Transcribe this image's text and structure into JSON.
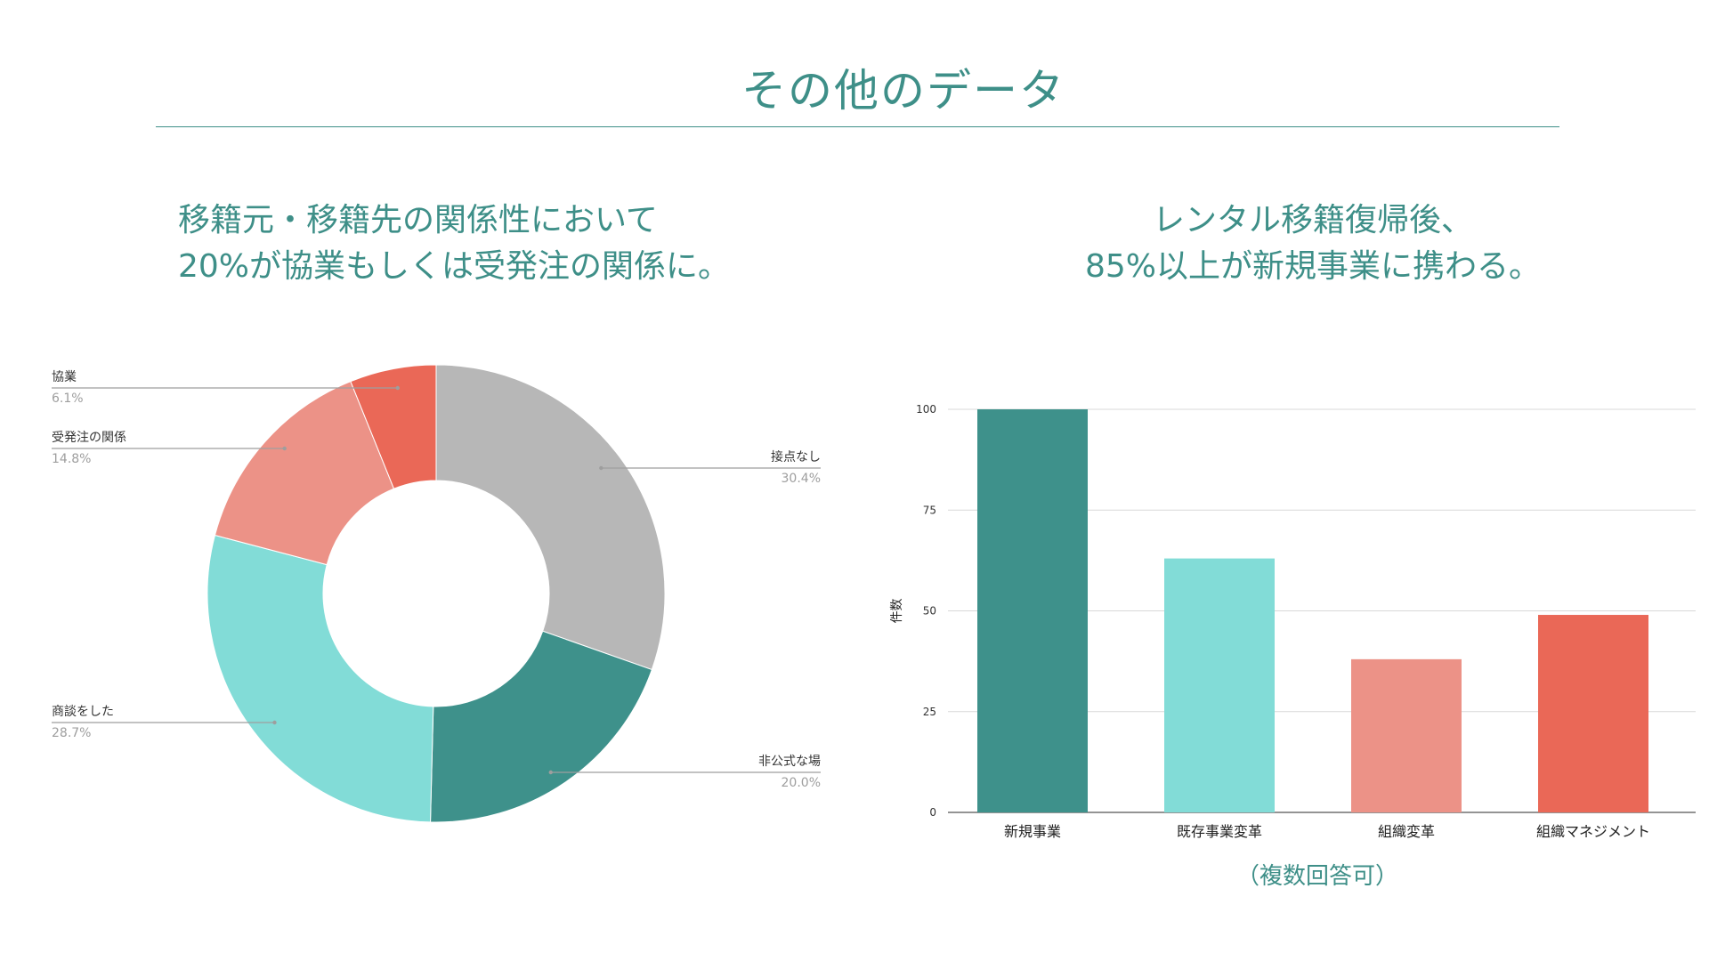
{
  "page": {
    "title": "その他のデータ",
    "accent": "#3e8f88"
  },
  "left": {
    "heading_line1": "移籍元・移籍先の関係性において",
    "heading_line2": "20%が協業もしくは受発注の関係に。"
  },
  "right": {
    "heading_line1": "レンタル移籍復帰後、",
    "heading_line2": "85%以上が新規事業に携わる。",
    "note": "（複数回答可）"
  },
  "chart_data": [
    {
      "type": "pie",
      "donut": true,
      "slices": [
        {
          "label": "接点なし",
          "value": 30.4,
          "display": "30.4%",
          "color": "#b7b7b7"
        },
        {
          "label": "非公式な場",
          "value": 20.0,
          "display": "20.0%",
          "color": "#3e918b"
        },
        {
          "label": "商談をした",
          "value": 28.7,
          "display": "28.7%",
          "color": "#82dcd7"
        },
        {
          "label": "受発注の関係",
          "value": 14.8,
          "display": "14.8%",
          "color": "#ec9287"
        },
        {
          "label": "協業",
          "value": 6.1,
          "display": "6.1%",
          "color": "#ea6857"
        }
      ]
    },
    {
      "type": "bar",
      "categories": [
        "新規事業",
        "既存事業変革",
        "組織変革",
        "組織マネジメント"
      ],
      "values": [
        100,
        63,
        38,
        49
      ],
      "colors": [
        "#3e918b",
        "#82dcd7",
        "#ec9287",
        "#ea6857"
      ],
      "ylabel": "件数",
      "ylim": [
        0,
        100
      ],
      "yticks": [
        0,
        25,
        50,
        75,
        100
      ],
      "grid": true
    }
  ]
}
